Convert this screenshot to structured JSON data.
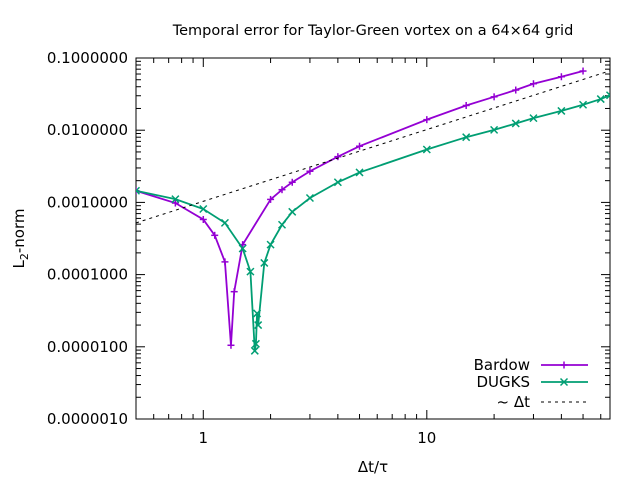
{
  "chart_data": {
    "type": "line",
    "title": "Temporal error for Taylor-Green vortex on a 64×64 grid",
    "xlabel": "Δt/τ",
    "ylabel": {
      "main": "L",
      "sub": "2",
      "rest": "-norm"
    },
    "xscale": "log",
    "yscale": "log",
    "xlim": [
      0.5,
      66
    ],
    "ylim": [
      1e-06,
      0.1
    ],
    "grid": false,
    "legend_position": "bottom-right",
    "xticks": [
      {
        "value": 1,
        "label": "1"
      },
      {
        "value": 10,
        "label": "10"
      }
    ],
    "yticks": [
      {
        "value": 1e-06,
        "label": "0.0000010"
      },
      {
        "value": 1e-05,
        "label": "0.0000100"
      },
      {
        "value": 0.0001,
        "label": "0.0001000"
      },
      {
        "value": 0.001,
        "label": "0.0010000"
      },
      {
        "value": 0.01,
        "label": "0.0100000"
      },
      {
        "value": 0.1,
        "label": "0.1000000"
      }
    ],
    "series": [
      {
        "name": "Bardow",
        "color": "#9400d3",
        "marker": "plus",
        "x": [
          0.5,
          0.75,
          1.0,
          1.125,
          1.25,
          1.33,
          1.375,
          1.5,
          2.0,
          2.25,
          2.5,
          3.0,
          4.0,
          5.0,
          10.0,
          15.0,
          20.0,
          25.0,
          30.0,
          40.0,
          50.0
        ],
        "y": [
          0.00145,
          0.00098,
          0.00058,
          0.00035,
          0.00015,
          1.05e-05,
          5.8e-05,
          0.00026,
          0.0011,
          0.0015,
          0.0019,
          0.0027,
          0.0043,
          0.006,
          0.014,
          0.022,
          0.029,
          0.036,
          0.044,
          0.055,
          0.066
        ]
      },
      {
        "name": "DUGKS",
        "color": "#009e73",
        "marker": "cross",
        "x": [
          0.5,
          0.75,
          1.0,
          1.25,
          1.5,
          1.625,
          1.7,
          1.72,
          1.74,
          1.76,
          1.875,
          2.0,
          2.25,
          2.5,
          3.0,
          4.0,
          5.0,
          10.0,
          15.0,
          20.0,
          25.0,
          30.0,
          40.0,
          50.0,
          60.0,
          66.0
        ],
        "y": [
          0.00145,
          0.00111,
          0.00081,
          0.00052,
          0.00023,
          0.00011,
          8.8e-06,
          1.1e-05,
          2.9e-05,
          2e-05,
          0.000145,
          0.00026,
          0.00049,
          0.00074,
          0.00115,
          0.0019,
          0.0026,
          0.0054,
          0.008,
          0.0101,
          0.0124,
          0.0147,
          0.0185,
          0.0225,
          0.027,
          0.0305
        ]
      },
      {
        "name": "~ Δt",
        "color": "#000000",
        "style": "dashed",
        "x": [
          0.5,
          66.0
        ],
        "y": [
          0.00052,
          0.0665
        ]
      }
    ]
  }
}
